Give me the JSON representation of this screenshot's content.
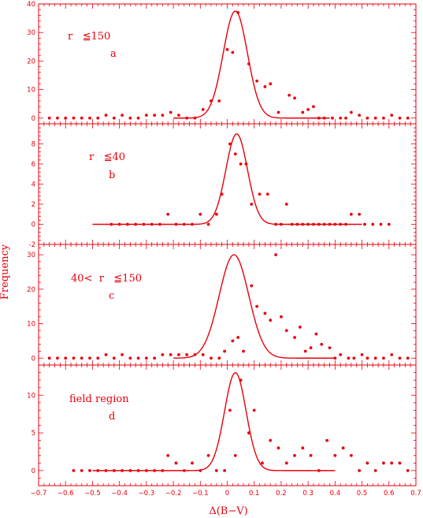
{
  "color": "#e8000b",
  "xlabel": "Δ(B−V)",
  "ylabel": "Frequency",
  "x_ticks": [
    "−0.7",
    "−0.6",
    "−0.5",
    "−0.4",
    "−0.3",
    "−0.2",
    "−0.1",
    "0",
    "0.1",
    "0.2",
    "0.3",
    "0.4",
    "0.5",
    "0.6",
    "0.7"
  ],
  "chart_data": [
    {
      "type": "scatter",
      "panel": "a",
      "label_line1": "r   ≦150",
      "label_line2": "a",
      "ylim": [
        -2,
        40
      ],
      "y_ticks": [
        0,
        10,
        20,
        30,
        40
      ],
      "xlim": [
        -0.7,
        0.7
      ],
      "points": [
        [
          -0.66,
          0
        ],
        [
          -0.63,
          0
        ],
        [
          -0.6,
          0
        ],
        [
          -0.57,
          0
        ],
        [
          -0.54,
          0
        ],
        [
          -0.51,
          0
        ],
        [
          -0.48,
          0
        ],
        [
          -0.45,
          1
        ],
        [
          -0.42,
          0
        ],
        [
          -0.39,
          1
        ],
        [
          -0.36,
          0
        ],
        [
          -0.33,
          0
        ],
        [
          -0.3,
          1
        ],
        [
          -0.27,
          1
        ],
        [
          -0.24,
          1
        ],
        [
          -0.21,
          2
        ],
        [
          -0.18,
          1
        ],
        [
          -0.15,
          0
        ],
        [
          -0.12,
          0
        ],
        [
          -0.09,
          3
        ],
        [
          -0.06,
          6
        ],
        [
          -0.03,
          6
        ],
        [
          0.0,
          24
        ],
        [
          0.02,
          23
        ],
        [
          0.04,
          37
        ],
        [
          0.08,
          19
        ],
        [
          0.11,
          13
        ],
        [
          0.14,
          11
        ],
        [
          0.16,
          12
        ],
        [
          0.19,
          2
        ],
        [
          0.23,
          8
        ],
        [
          0.25,
          7
        ],
        [
          0.28,
          2
        ],
        [
          0.3,
          3
        ],
        [
          0.32,
          4
        ],
        [
          0.34,
          0
        ],
        [
          0.36,
          0
        ],
        [
          0.39,
          0
        ],
        [
          0.42,
          0
        ],
        [
          0.44,
          0
        ],
        [
          0.46,
          2
        ],
        [
          0.49,
          1
        ],
        [
          0.52,
          0
        ],
        [
          0.55,
          0
        ],
        [
          0.58,
          0
        ],
        [
          0.61,
          1
        ],
        [
          0.64,
          0
        ],
        [
          0.67,
          0
        ]
      ],
      "fit": {
        "type": "gaussian",
        "amplitude": 37.5,
        "mean": 0.03,
        "sigma": 0.045,
        "x_range": [
          -0.2,
          0.38
        ]
      }
    },
    {
      "type": "scatter",
      "panel": "b",
      "label_line1": "r   ≦40",
      "label_line2": "b",
      "ylim": [
        -2,
        10
      ],
      "y_ticks": [
        -2,
        0,
        2,
        4,
        6,
        8
      ],
      "xlim": [
        -0.7,
        0.7
      ],
      "points": [
        [
          -0.43,
          0
        ],
        [
          -0.4,
          0
        ],
        [
          -0.37,
          0
        ],
        [
          -0.34,
          0
        ],
        [
          -0.31,
          0
        ],
        [
          -0.28,
          0
        ],
        [
          -0.25,
          0
        ],
        [
          -0.22,
          1
        ],
        [
          -0.19,
          0
        ],
        [
          -0.16,
          0
        ],
        [
          -0.13,
          0
        ],
        [
          -0.1,
          1
        ],
        [
          -0.07,
          0
        ],
        [
          -0.04,
          1
        ],
        [
          -0.02,
          3
        ],
        [
          0.01,
          8
        ],
        [
          0.03,
          7
        ],
        [
          0.05,
          6
        ],
        [
          0.07,
          6
        ],
        [
          0.09,
          2
        ],
        [
          0.12,
          3
        ],
        [
          0.15,
          3
        ],
        [
          0.18,
          0
        ],
        [
          0.2,
          0
        ],
        [
          0.22,
          2
        ],
        [
          0.24,
          0
        ],
        [
          0.26,
          0
        ],
        [
          0.28,
          0
        ],
        [
          0.3,
          0
        ],
        [
          0.32,
          0
        ],
        [
          0.34,
          0
        ],
        [
          0.36,
          0
        ],
        [
          0.38,
          0
        ],
        [
          0.4,
          0
        ],
        [
          0.42,
          0
        ],
        [
          0.44,
          0
        ],
        [
          0.46,
          1
        ],
        [
          0.49,
          1
        ],
        [
          0.51,
          0
        ],
        [
          0.54,
          0
        ],
        [
          0.57,
          0
        ],
        [
          0.6,
          0
        ]
      ],
      "fit": {
        "type": "gaussian",
        "amplitude": 9.0,
        "mean": 0.035,
        "sigma": 0.04,
        "x_range": [
          -0.5,
          0.5
        ]
      }
    },
    {
      "type": "scatter",
      "panel": "c",
      "label_line1": "40<  r   ≦150",
      "label_line2": "c",
      "ylim": [
        -2,
        33
      ],
      "y_ticks": [
        0,
        10,
        20,
        30
      ],
      "xlim": [
        -0.7,
        0.7
      ],
      "points": [
        [
          -0.66,
          0
        ],
        [
          -0.63,
          0
        ],
        [
          -0.6,
          0
        ],
        [
          -0.57,
          0
        ],
        [
          -0.54,
          0
        ],
        [
          -0.51,
          0
        ],
        [
          -0.48,
          0
        ],
        [
          -0.45,
          1
        ],
        [
          -0.42,
          0
        ],
        [
          -0.39,
          1
        ],
        [
          -0.36,
          0
        ],
        [
          -0.33,
          0
        ],
        [
          -0.3,
          0
        ],
        [
          -0.27,
          0
        ],
        [
          -0.24,
          1
        ],
        [
          -0.21,
          1
        ],
        [
          -0.18,
          1
        ],
        [
          -0.15,
          1
        ],
        [
          -0.12,
          1
        ],
        [
          -0.09,
          1
        ],
        [
          -0.06,
          0
        ],
        [
          -0.03,
          0
        ],
        [
          -0.01,
          2
        ],
        [
          0.02,
          5
        ],
        [
          0.04,
          6
        ],
        [
          0.06,
          2
        ],
        [
          0.09,
          21
        ],
        [
          0.11,
          15
        ],
        [
          0.14,
          13
        ],
        [
          0.16,
          11
        ],
        [
          0.18,
          30
        ],
        [
          0.2,
          12
        ],
        [
          0.22,
          8
        ],
        [
          0.25,
          6
        ],
        [
          0.27,
          9
        ],
        [
          0.29,
          2
        ],
        [
          0.31,
          3
        ],
        [
          0.33,
          7
        ],
        [
          0.35,
          4
        ],
        [
          0.38,
          3
        ],
        [
          0.4,
          0
        ],
        [
          0.42,
          1
        ],
        [
          0.45,
          0
        ],
        [
          0.47,
          0
        ],
        [
          0.5,
          1
        ],
        [
          0.52,
          0
        ],
        [
          0.55,
          0
        ],
        [
          0.58,
          0
        ],
        [
          0.61,
          1
        ],
        [
          0.64,
          0
        ],
        [
          0.67,
          0
        ]
      ],
      "fit": {
        "type": "gaussian",
        "amplitude": 30.0,
        "mean": 0.025,
        "sigma": 0.055,
        "x_range": [
          -0.2,
          0.4
        ]
      }
    },
    {
      "type": "scatter",
      "panel": "d",
      "label_line1": "field region",
      "label_line2": "d",
      "ylim": [
        -2,
        14
      ],
      "y_ticks": [
        0,
        5,
        10
      ],
      "xlim": [
        -0.7,
        0.7
      ],
      "points": [
        [
          -0.57,
          0
        ],
        [
          -0.54,
          0
        ],
        [
          -0.51,
          0
        ],
        [
          -0.48,
          0
        ],
        [
          -0.45,
          0
        ],
        [
          -0.42,
          0
        ],
        [
          -0.39,
          0
        ],
        [
          -0.36,
          0
        ],
        [
          -0.33,
          0
        ],
        [
          -0.3,
          0
        ],
        [
          -0.27,
          0
        ],
        [
          -0.24,
          0
        ],
        [
          -0.22,
          2
        ],
        [
          -0.19,
          1
        ],
        [
          -0.16,
          0
        ],
        [
          -0.13,
          1
        ],
        [
          -0.1,
          0
        ],
        [
          -0.07,
          2
        ],
        [
          -0.04,
          0
        ],
        [
          -0.01,
          0
        ],
        [
          0.01,
          8
        ],
        [
          0.03,
          2
        ],
        [
          0.05,
          12
        ],
        [
          0.08,
          5
        ],
        [
          0.1,
          8
        ],
        [
          0.13,
          1
        ],
        [
          0.16,
          4
        ],
        [
          0.19,
          3
        ],
        [
          0.22,
          1
        ],
        [
          0.25,
          2
        ],
        [
          0.28,
          3
        ],
        [
          0.31,
          2
        ],
        [
          0.34,
          0
        ],
        [
          0.37,
          4
        ],
        [
          0.4,
          2
        ],
        [
          0.43,
          3
        ],
        [
          0.46,
          2
        ],
        [
          0.49,
          0
        ],
        [
          0.52,
          1
        ],
        [
          0.55,
          0
        ],
        [
          0.58,
          1
        ],
        [
          0.61,
          1
        ],
        [
          0.64,
          1
        ],
        [
          0.67,
          0
        ]
      ],
      "fit": {
        "type": "gaussian",
        "amplitude": 13.0,
        "mean": 0.03,
        "sigma": 0.04,
        "x_range": [
          -0.5,
          0.4
        ]
      }
    }
  ]
}
